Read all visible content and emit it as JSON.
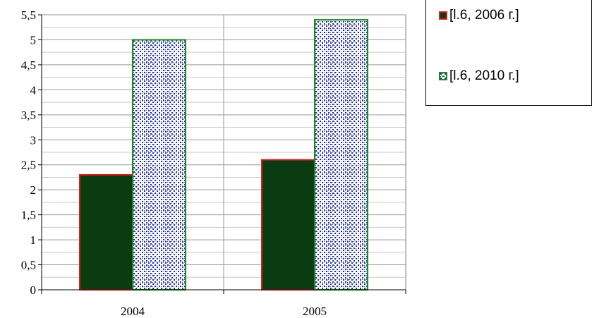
{
  "chart_data": {
    "type": "bar",
    "categories": [
      "2004",
      "2005"
    ],
    "series": [
      {
        "name": "[l.6, 2006 г.]",
        "values": [
          2.3,
          2.6
        ],
        "color": "#0b3b10",
        "border": "#d81e1e"
      },
      {
        "name": "[l.6, 2010 г.]",
        "values": [
          5.0,
          5.4
        ],
        "color": "#ffffff",
        "pattern_color": "#1f2d8c",
        "border": "#1a8a1a"
      }
    ],
    "ylim": [
      0,
      5.5
    ],
    "yticks": [
      "0",
      "0,5",
      "1",
      "1,5",
      "2",
      "2,5",
      "3",
      "3,5",
      "4",
      "4,5",
      "5",
      "5,5"
    ],
    "grid": true,
    "legend": "top-right",
    "title": "",
    "xlabel": "",
    "ylabel": ""
  }
}
